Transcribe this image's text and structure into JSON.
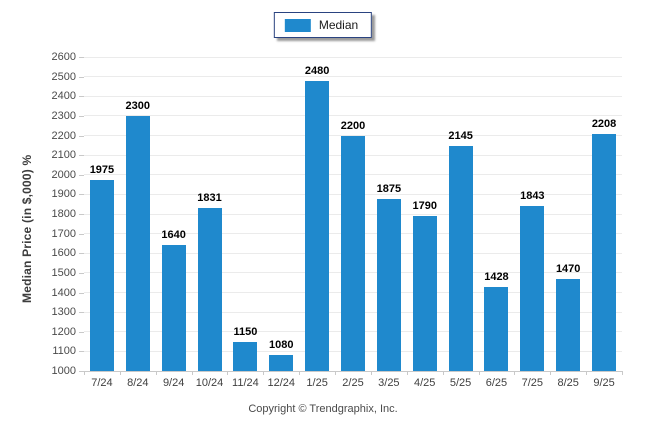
{
  "legend": {
    "label": "Median",
    "swatch_icon": "blue-square-swatch"
  },
  "footer": {
    "copyright": "Copyright © Trendgraphix, Inc."
  },
  "colors": {
    "bar": "#1f89cd",
    "legend_border": "#2a4380",
    "grid": "#ebebeb",
    "axis": "#c9c9c9",
    "tick_label": "#4a4a4a",
    "value_label": "#000000"
  },
  "chart_data": {
    "type": "bar",
    "title": "",
    "xlabel": "",
    "ylabel": "Median Price (in $,000) %",
    "categories": [
      "7/24",
      "8/24",
      "9/24",
      "10/24",
      "11/24",
      "12/24",
      "1/25",
      "2/25",
      "3/25",
      "4/25",
      "5/25",
      "6/25",
      "7/25",
      "8/25",
      "9/25"
    ],
    "series": [
      {
        "name": "Median",
        "values": [
          1975,
          2300,
          1640,
          1831,
          1150,
          1080,
          2480,
          2200,
          1875,
          1790,
          2145,
          1428,
          1843,
          1470,
          2208
        ]
      }
    ],
    "ylim": [
      1000,
      2600
    ],
    "ytick_step": 100,
    "grid": true,
    "legend_position": "top-center",
    "bar_value_labels": true
  }
}
